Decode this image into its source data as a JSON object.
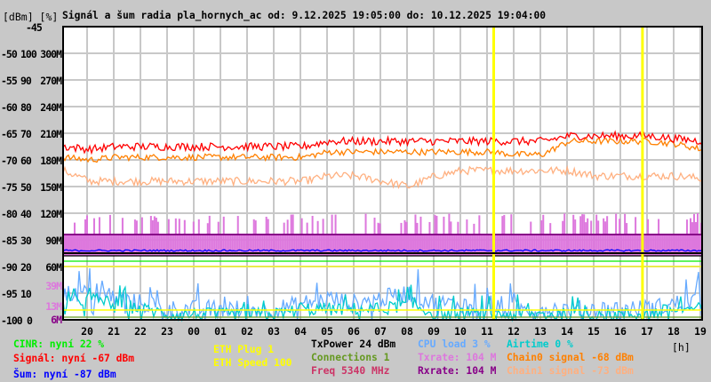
{
  "chart_data": {
    "type": "line",
    "title": "Signál a šum radia pla_hornych_ac od: 9.12.2025 19:05:00 do: 10.12.2025 19:04:00",
    "ylabel": "[dBm] [%]",
    "xlabel": "[h]",
    "ylim": [
      -100,
      -45
    ],
    "y_ticks": [
      {
        "dbm": "-45",
        "pct": "",
        "rate": ""
      },
      {
        "dbm": "-50",
        "pct": "100",
        "rate": "300M"
      },
      {
        "dbm": "-55",
        "pct": "90",
        "rate": "270M"
      },
      {
        "dbm": "-60",
        "pct": "80",
        "rate": "240M"
      },
      {
        "dbm": "-65",
        "pct": "70",
        "rate": "210M"
      },
      {
        "dbm": "-70",
        "pct": "60",
        "rate": "180M"
      },
      {
        "dbm": "-75",
        "pct": "50",
        "rate": "150M"
      },
      {
        "dbm": "-80",
        "pct": "40",
        "rate": "120M"
      },
      {
        "dbm": "-85",
        "pct": "30",
        "rate": "90M"
      },
      {
        "dbm": "-90",
        "pct": "20",
        "rate": "60M"
      },
      {
        "dbm": "-95",
        "pct": "10",
        "rate": ""
      },
      {
        "dbm": "-100",
        "pct": "0",
        "rate": ""
      }
    ],
    "extra_rate_labels": [
      "39M",
      "13M",
      "6M"
    ],
    "x_ticks": [
      "20",
      "21",
      "22",
      "23",
      "00",
      "01",
      "02",
      "03",
      "04",
      "05",
      "06",
      "07",
      "08",
      "09",
      "10",
      "11",
      "12",
      "13",
      "14",
      "15",
      "16",
      "17",
      "18",
      "19"
    ],
    "x_hours_start": 19.083,
    "markers_hours": [
      11.25,
      16.83
    ],
    "grid": true,
    "series": [
      {
        "name": "Signál",
        "color": "#ff0000",
        "values": [
          -67.5,
          -68,
          -67.5,
          -67.5,
          -67.5,
          -67.5,
          -67.5,
          -67.5,
          -67.5,
          -67.5,
          -66.5,
          -66.5,
          -66.5,
          -66.5,
          -66.5,
          -66.5,
          -66.5,
          -66.5,
          -66.5,
          -65.5,
          -65.5,
          -65.5,
          -65.5,
          -66,
          -66.5
        ]
      },
      {
        "name": "Chain0",
        "color": "#ff8000",
        "values": [
          -69.5,
          -70,
          -69.5,
          -69.5,
          -69.5,
          -69.5,
          -69.5,
          -69.5,
          -69.5,
          -69.5,
          -68.5,
          -68.5,
          -68.5,
          -68.5,
          -68.5,
          -68.5,
          -68.5,
          -69,
          -69,
          -66.5,
          -66.5,
          -66.5,
          -66.5,
          -67,
          -68
        ]
      },
      {
        "name": "Chain1",
        "color": "#ffb080",
        "values": [
          -72,
          -74,
          -74,
          -74,
          -74,
          -74,
          -74,
          -74,
          -74,
          -74,
          -73,
          -73,
          -74,
          -75,
          -73,
          -72,
          -72,
          -72,
          -72,
          -72,
          -73,
          -73,
          -73,
          -73,
          -73.5
        ]
      },
      {
        "name": "Šum",
        "color": "#0000ff",
        "values": [
          -87,
          -87,
          -87,
          -87,
          -87,
          -87,
          -87,
          -87,
          -87,
          -87,
          -87,
          -87,
          -87,
          -87,
          -87,
          -87,
          -87,
          -87,
          -87,
          -87,
          -87,
          -87,
          -87,
          -87,
          -87
        ]
      },
      {
        "name": "Rxrate",
        "color": "#880088",
        "values": [
          -84,
          -84,
          -84,
          -84,
          -84,
          -84,
          -84,
          -84,
          -84,
          -84,
          -84,
          -84,
          -84,
          -84,
          -84,
          -84,
          -84,
          -84,
          -84,
          -84,
          -84,
          -84,
          -84,
          -84,
          -84
        ]
      },
      {
        "name": "Txrate",
        "color": "#dd77dd",
        "values": [
          -85,
          -85,
          -85,
          -85,
          -85,
          -85,
          -85,
          -85,
          -85,
          -85,
          -85,
          -85,
          -85,
          -85,
          -85,
          -85,
          -85,
          -85,
          -85,
          -85,
          -85,
          -85,
          -85,
          -85,
          -85
        ]
      },
      {
        "name": "TxPower",
        "color": "#000000",
        "values": [
          -88,
          -88,
          -88,
          -88,
          -88,
          -88,
          -88,
          -88,
          -88,
          -88,
          -88,
          -88,
          -88,
          -88,
          -88,
          -88,
          -88,
          -88,
          -88,
          -88,
          -88,
          -88,
          -88,
          -88,
          -88
        ]
      },
      {
        "name": "CINR",
        "color": "#00ee00",
        "values": [
          -89,
          -89,
          -89,
          -89,
          -89,
          -89,
          -89,
          -89,
          -89,
          -89,
          -89,
          -89,
          -89,
          -89,
          -89,
          -89,
          -89,
          -89,
          -89,
          -89,
          -89,
          -89,
          -89,
          -89,
          -89
        ]
      },
      {
        "name": "ETH",
        "color": "#ffff00",
        "values": [
          -90,
          -90,
          -90,
          -90,
          -90,
          -90,
          -90,
          -90,
          -90,
          -90,
          -90,
          -90,
          -90,
          -90,
          -90,
          -90,
          -90,
          -90,
          -90,
          -90,
          -90,
          -90,
          -90,
          -90,
          -90
        ]
      },
      {
        "name": "CPU load",
        "color": "#66aaff",
        "values": [
          -95,
          -95,
          -96,
          -97,
          -98,
          -98,
          -98,
          -98,
          -98,
          -97,
          -96,
          -97,
          -96,
          -95,
          -97,
          -97,
          -98,
          -98,
          -98,
          -98,
          -98,
          -98,
          -98,
          -97,
          -96
        ]
      },
      {
        "name": "Airtime",
        "color": "#00cccc",
        "values": [
          -97,
          -96,
          -97,
          -98,
          -99,
          -99,
          -99,
          -99,
          -99,
          -98,
          -98,
          -98,
          -98,
          -97,
          -99,
          -99,
          -99,
          -99,
          -99,
          -99,
          -99,
          -99,
          -99,
          -98,
          -98
        ]
      },
      {
        "name": "Connections",
        "color": "#669922",
        "values": [
          -99.5,
          -99.5,
          -99.5,
          -99.5,
          -99.5,
          -99.5,
          -99.5,
          -99.5,
          -99.5,
          -99.5,
          -99.5,
          -99.5,
          -99.5,
          -99.5,
          -99.5,
          -99.5,
          -99.5,
          -99.5,
          -99.5,
          -99.5,
          -99.5,
          -99.5,
          -99.5,
          -99.5,
          -99.5
        ]
      }
    ]
  },
  "legend": {
    "cinr": "CINR: nyní 22 %",
    "signal": "Signál: nyní -67 dBm",
    "noise": "Šum: nyní -87 dBm",
    "eth_plug": "ETH Plug 1",
    "eth_speed": "ETH Speed 100",
    "txpower": "TxPower 24 dBm",
    "connections": "Connections 1",
    "freq": "Freq 5340 MHz",
    "cpu": "CPU load 3 %",
    "txrate": "Txrate: 104 M",
    "rxrate": "Rxrate: 104 M",
    "airtime": "Airtime 0 %",
    "chain0": "Chain0 signal -68 dBm",
    "chain1": "Chain1 signal -73 dBm"
  },
  "colors": {
    "bg": "#c8c8c8",
    "grid": "#c8c8c8",
    "plot": "#ffffff",
    "marker": "#ffff00"
  }
}
